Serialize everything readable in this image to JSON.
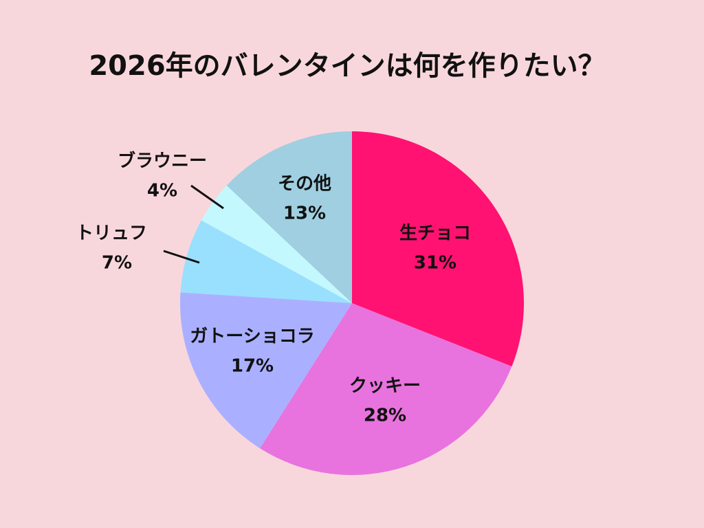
{
  "chart_data": {
    "type": "pie",
    "title": "2026年のバレンタインは何を作りたい？",
    "categories": [
      "生チョコ",
      "クッキー",
      "ガトーショコラ",
      "トリュフ",
      "ブラウニー",
      "その他"
    ],
    "values": [
      31,
      28,
      17,
      7,
      4,
      13
    ],
    "value_labels": [
      "31%",
      "28%",
      "17%",
      "7%",
      "4%",
      "13%"
    ],
    "colors": [
      "#ff1271",
      "#e873de",
      "#aab0ff",
      "#99e0ff",
      "#c4f8ff",
      "#9fcfe0"
    ]
  }
}
